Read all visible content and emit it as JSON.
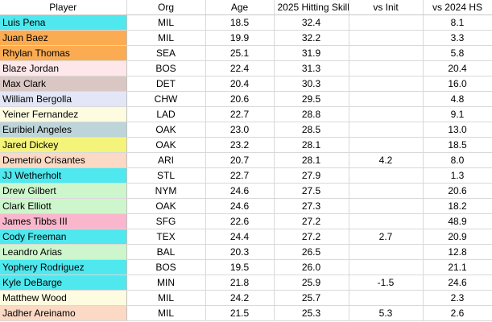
{
  "headers": {
    "player": "Player",
    "org": "Org",
    "age": "Age",
    "skill": "2025 Hitting Skill",
    "init": "vs Init",
    "hs": "vs 2024 HS"
  },
  "rows": [
    {
      "player": "Luis Pena",
      "org": "MIL",
      "age": "18.5",
      "skill": "32.4",
      "init": "",
      "hs": "8.1",
      "color": "#4ee8ee"
    },
    {
      "player": "Juan Baez",
      "org": "MIL",
      "age": "19.9",
      "skill": "32.2",
      "init": "",
      "hs": "3.3",
      "color": "#fbac52"
    },
    {
      "player": "Rhylan Thomas",
      "org": "SEA",
      "age": "25.1",
      "skill": "31.9",
      "init": "",
      "hs": "5.8",
      "color": "#fbac52"
    },
    {
      "player": "Blaze Jordan",
      "org": "BOS",
      "age": "22.4",
      "skill": "31.3",
      "init": "",
      "hs": "20.4",
      "color": "#fde7ea"
    },
    {
      "player": "Max Clark",
      "org": "DET",
      "age": "20.4",
      "skill": "30.3",
      "init": "",
      "hs": "16.0",
      "color": "#dac7c4"
    },
    {
      "player": "William Bergolla",
      "org": "CHW",
      "age": "20.6",
      "skill": "29.5",
      "init": "",
      "hs": "4.8",
      "color": "#e3e6f6"
    },
    {
      "player": "Yeiner Fernandez",
      "org": "LAD",
      "age": "22.7",
      "skill": "28.8",
      "init": "",
      "hs": "9.1",
      "color": "#fdfbe0"
    },
    {
      "player": "Euribiel Angeles",
      "org": "OAK",
      "age": "23.0",
      "skill": "28.5",
      "init": "",
      "hs": "13.0",
      "color": "#bdd4d8"
    },
    {
      "player": "Jared Dickey",
      "org": "OAK",
      "age": "23.2",
      "skill": "28.1",
      "init": "",
      "hs": "18.5",
      "color": "#f5f47a"
    },
    {
      "player": "Demetrio Crisantes",
      "org": "ARI",
      "age": "20.7",
      "skill": "28.1",
      "init": "4.2",
      "hs": "8.0",
      "color": "#fbd9c4"
    },
    {
      "player": "JJ Wetherholt",
      "org": "STL",
      "age": "22.7",
      "skill": "27.9",
      "init": "",
      "hs": "1.3",
      "color": "#4ee8ee"
    },
    {
      "player": "Drew Gilbert",
      "org": "NYM",
      "age": "24.6",
      "skill": "27.5",
      "init": "",
      "hs": "20.6",
      "color": "#cdf6cd"
    },
    {
      "player": "Clark Elliott",
      "org": "OAK",
      "age": "24.6",
      "skill": "27.3",
      "init": "",
      "hs": "18.2",
      "color": "#cdf6cd"
    },
    {
      "player": "James Tibbs III",
      "org": "SFG",
      "age": "22.6",
      "skill": "27.2",
      "init": "",
      "hs": "48.9",
      "color": "#f9b6cc"
    },
    {
      "player": "Cody Freeman",
      "org": "TEX",
      "age": "24.4",
      "skill": "27.2",
      "init": "2.7",
      "hs": "20.9",
      "color": "#4ee8ee"
    },
    {
      "player": "Leandro Arias",
      "org": "BAL",
      "age": "20.3",
      "skill": "26.5",
      "init": "",
      "hs": "12.8",
      "color": "#cdf6cd"
    },
    {
      "player": "Yophery Rodriguez",
      "org": "BOS",
      "age": "19.5",
      "skill": "26.0",
      "init": "",
      "hs": "21.1",
      "color": "#4ee8ee"
    },
    {
      "player": "Kyle DeBarge",
      "org": "MIN",
      "age": "21.8",
      "skill": "25.9",
      "init": "-1.5",
      "hs": "24.6",
      "color": "#4ee8ee"
    },
    {
      "player": "Matthew Wood",
      "org": "MIL",
      "age": "24.2",
      "skill": "25.7",
      "init": "",
      "hs": "2.3",
      "color": "#fdfbe0"
    },
    {
      "player": "Jadher Areinamo",
      "org": "MIL",
      "age": "21.5",
      "skill": "25.3",
      "init": "5.3",
      "hs": "2.6",
      "color": "#fbd9c4"
    }
  ]
}
